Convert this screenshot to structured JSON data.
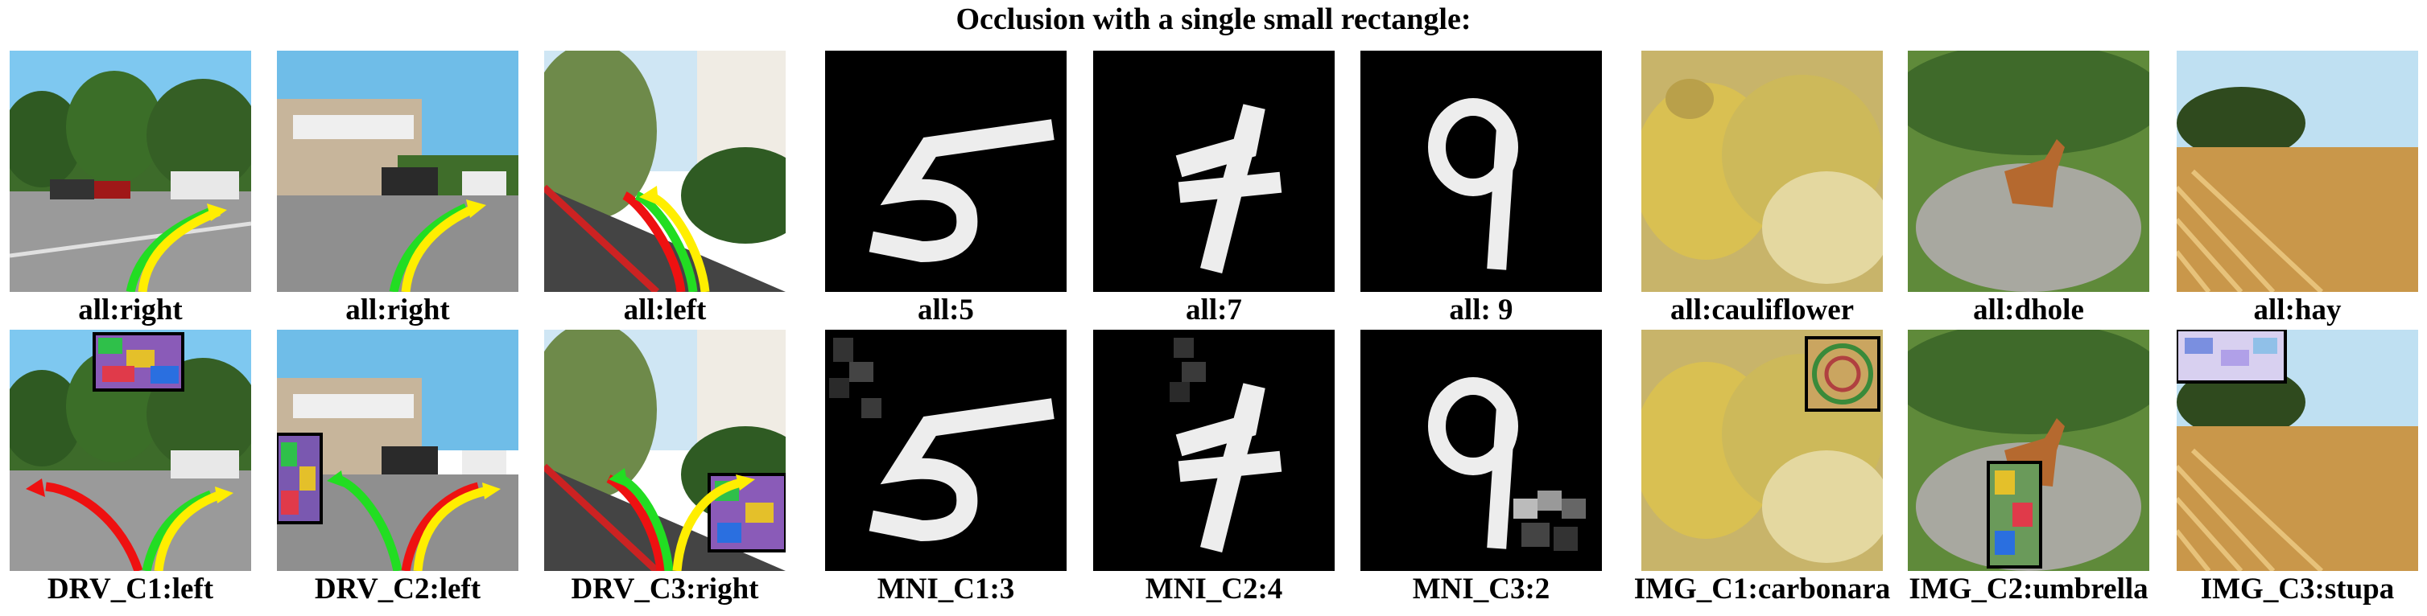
{
  "figure": {
    "title": "Occlusion with a single small rectangle:"
  },
  "top_row": [
    {
      "label": "all:right",
      "scene": "driving",
      "arrow_color": "yellow"
    },
    {
      "label": "all:right",
      "scene": "driving",
      "arrow_color": "yellow"
    },
    {
      "label": "all:left",
      "scene": "driving",
      "arrow_color": "yellow"
    },
    {
      "label": "all:5",
      "scene": "mnist",
      "digit": "5"
    },
    {
      "label": "all:7",
      "scene": "mnist",
      "digit": "7"
    },
    {
      "label": "all: 9",
      "scene": "mnist",
      "digit": "9"
    },
    {
      "label": "all:cauliflower",
      "scene": "imagenet"
    },
    {
      "label": "all:dhole",
      "scene": "imagenet"
    },
    {
      "label": "all:hay",
      "scene": "imagenet"
    }
  ],
  "bottom_row": [
    {
      "label": "DRV_C1:left",
      "scene": "driving",
      "occlusion": "noise rectangle"
    },
    {
      "label": "DRV_C2:left",
      "scene": "driving",
      "occlusion": "noise rectangle"
    },
    {
      "label": "DRV_C3:right",
      "scene": "driving",
      "occlusion": "noise rectangle"
    },
    {
      "label": "MNI_C1:3",
      "scene": "mnist",
      "digit": "5"
    },
    {
      "label": "MNI_C2:4",
      "scene": "mnist",
      "digit": "7"
    },
    {
      "label": "MNI_C3:2",
      "scene": "mnist",
      "digit": "9"
    },
    {
      "label": "IMG_C1:carbonara",
      "scene": "imagenet",
      "occlusion": "noise rectangle"
    },
    {
      "label": "IMG_C2:umbrella",
      "scene": "imagenet",
      "occlusion": "noise rectangle"
    },
    {
      "label": "IMG_C3:stupa",
      "scene": "imagenet",
      "occlusion": "noise rectangle"
    }
  ],
  "colors": {
    "arrow_yellow": "#ffee00",
    "arrow_green": "#22dd22",
    "arrow_red": "#ee1111",
    "sky": "#7ec8f0",
    "mnist_bg": "#000000"
  }
}
